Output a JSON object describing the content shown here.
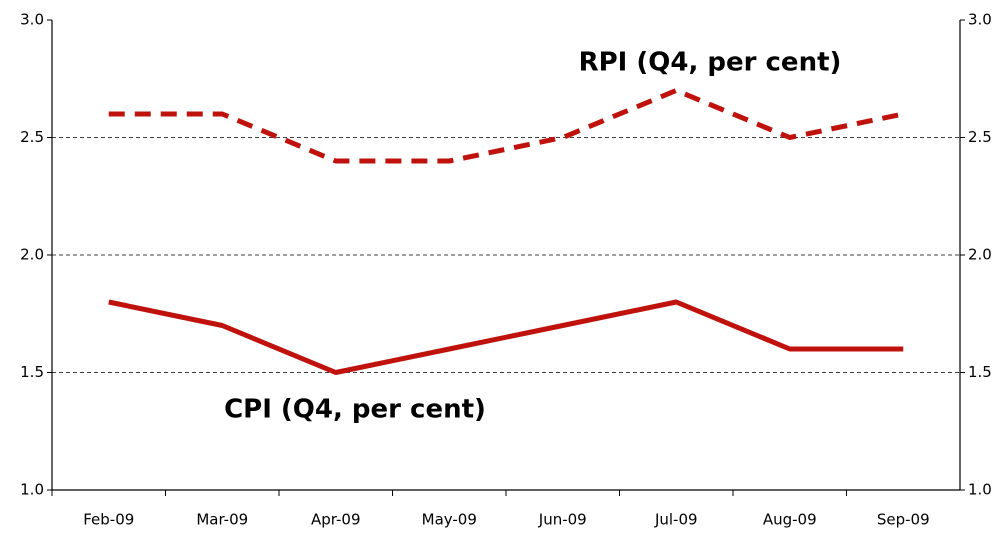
{
  "chart_data": {
    "type": "line",
    "categories": [
      "Feb-09",
      "Mar-09",
      "Apr-09",
      "May-09",
      "Jun-09",
      "Jul-09",
      "Aug-09",
      "Sep-09"
    ],
    "series": [
      {
        "name": "RPI (Q4, per cent)",
        "color": "#c0120c",
        "dash": true,
        "values": [
          2.6,
          2.6,
          2.4,
          2.4,
          2.5,
          2.7,
          2.5,
          2.6
        ]
      },
      {
        "name": "CPI (Q4, per cent)",
        "color": "#c0120c",
        "dash": false,
        "values": [
          1.8,
          1.7,
          1.5,
          1.6,
          1.7,
          1.8,
          1.6,
          1.6
        ]
      }
    ],
    "ylim": [
      1.0,
      3.0
    ],
    "yticks": [
      {
        "value": 1.0,
        "label": "1.0"
      },
      {
        "value": 1.5,
        "label": "1.5"
      },
      {
        "value": 2.0,
        "label": "2.0"
      },
      {
        "value": 2.5,
        "label": "2.5"
      },
      {
        "value": 3.0,
        "label": "3.0"
      }
    ],
    "y2lim": [
      1.0,
      3.0
    ],
    "y2ticks": [
      {
        "value": 1.0,
        "label": "1.0"
      },
      {
        "value": 1.5,
        "label": "1.5"
      },
      {
        "value": 2.0,
        "label": "2.0"
      },
      {
        "value": 2.5,
        "label": "2.5"
      },
      {
        "value": 3.0,
        "label": "3.0"
      }
    ],
    "grid": true
  }
}
